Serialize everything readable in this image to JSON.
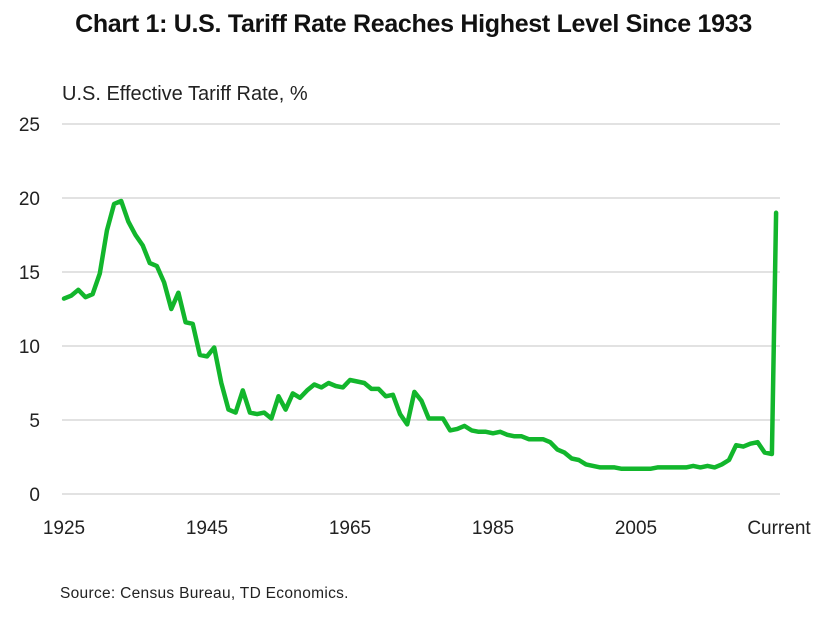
{
  "chart_data": {
    "type": "line",
    "title": "Chart 1: U.S. Tariff Rate Reaches Highest Level Since 1933",
    "ylabel": "U.S. Effective Tariff Rate, %",
    "xlabel": "",
    "source": "Source: Census Bureau, TD Economics.",
    "ylim": [
      0,
      25
    ],
    "yticks": [
      "0",
      "5",
      "10",
      "15",
      "20",
      "25"
    ],
    "xticks": [
      {
        "label": "1925",
        "x": 1925
      },
      {
        "label": "1945",
        "x": 1945
      },
      {
        "label": "1965",
        "x": 1965
      },
      {
        "label": "1985",
        "x": 1985
      },
      {
        "label": "2005",
        "x": 2005
      },
      {
        "label": "Current",
        "x": 2025
      }
    ],
    "xlim": [
      1925,
      2025
    ],
    "grid": true,
    "legend": "none",
    "line_color": "#12b62c",
    "series": [
      {
        "name": "U.S. Effective Tariff Rate",
        "x": [
          1925,
          1926,
          1927,
          1928,
          1929,
          1930,
          1931,
          1932,
          1933,
          1934,
          1935,
          1936,
          1937,
          1938,
          1939,
          1940,
          1941,
          1942,
          1943,
          1944,
          1945,
          1946,
          1947,
          1948,
          1949,
          1950,
          1951,
          1952,
          1953,
          1954,
          1955,
          1956,
          1957,
          1958,
          1959,
          1960,
          1961,
          1962,
          1963,
          1964,
          1965,
          1966,
          1967,
          1968,
          1969,
          1970,
          1971,
          1972,
          1973,
          1974,
          1975,
          1976,
          1977,
          1978,
          1979,
          1980,
          1981,
          1982,
          1983,
          1984,
          1985,
          1986,
          1987,
          1988,
          1989,
          1990,
          1991,
          1992,
          1993,
          1994,
          1995,
          1996,
          1997,
          1998,
          1999,
          2000,
          2001,
          2002,
          2003,
          2004,
          2005,
          2006,
          2007,
          2008,
          2009,
          2010,
          2011,
          2012,
          2013,
          2014,
          2015,
          2016,
          2017,
          2018,
          2019,
          2020,
          2021,
          2022,
          2023,
          2024,
          2024.6
        ],
        "values": [
          13.2,
          13.4,
          13.8,
          13.3,
          13.5,
          14.9,
          17.8,
          19.6,
          19.8,
          18.4,
          17.5,
          16.8,
          15.6,
          15.4,
          14.3,
          12.5,
          13.6,
          11.6,
          11.5,
          9.4,
          9.3,
          9.9,
          7.5,
          5.7,
          5.5,
          7.0,
          5.5,
          5.4,
          5.5,
          5.1,
          6.6,
          5.7,
          6.8,
          6.5,
          7.0,
          7.4,
          7.2,
          7.5,
          7.3,
          7.2,
          7.7,
          7.6,
          7.5,
          7.1,
          7.1,
          6.6,
          6.7,
          5.4,
          4.7,
          6.9,
          6.3,
          5.1,
          5.1,
          5.1,
          4.3,
          4.4,
          4.6,
          4.3,
          4.2,
          4.2,
          4.1,
          4.2,
          4.0,
          3.9,
          3.9,
          3.7,
          3.7,
          3.7,
          3.5,
          3.0,
          2.8,
          2.4,
          2.3,
          2.0,
          1.9,
          1.8,
          1.8,
          1.8,
          1.7,
          1.7,
          1.7,
          1.7,
          1.7,
          1.8,
          1.8,
          1.8,
          1.8,
          1.8,
          1.9,
          1.8,
          1.9,
          1.8,
          2.0,
          2.3,
          3.3,
          3.2,
          3.4,
          3.5,
          2.8,
          2.7,
          19.0
        ]
      }
    ]
  }
}
